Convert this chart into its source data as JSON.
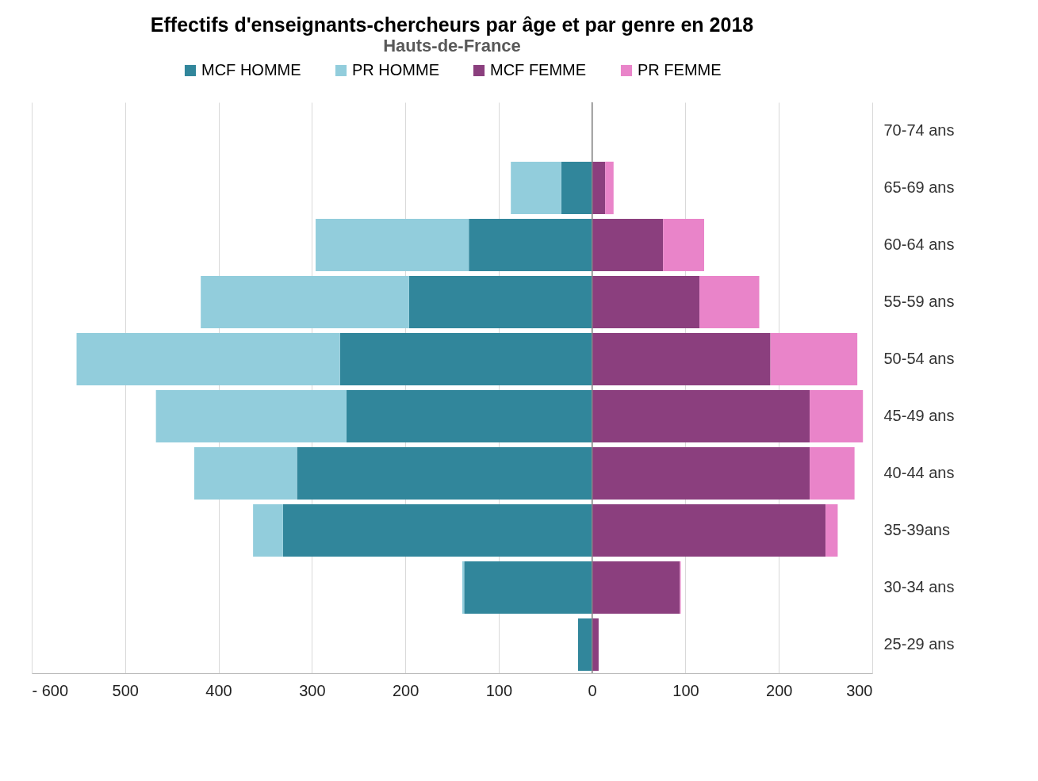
{
  "chart_data": {
    "type": "bar",
    "orientation": "horizontal",
    "stacked": true,
    "title": "Effectifs d'enseignants-chercheurs par âge et par genre en 2018",
    "subtitle": "Hauts-de-France",
    "categories": [
      "70-74 ans",
      "65-69 ans",
      "60-64 ans",
      "55-59 ans",
      "50-54 ans",
      "45-49 ans",
      "40-44 ans",
      "35-39ans",
      "30-34 ans",
      "25-29 ans"
    ],
    "series": [
      {
        "name": "MCF HOMME",
        "color": "#31869b",
        "values": [
          null,
          -33,
          -132,
          -196,
          -270,
          -263,
          -316,
          -331,
          -137,
          -15
        ]
      },
      {
        "name": "PR HOMME",
        "color": "#92cddc",
        "values": [
          null,
          -54,
          -164,
          -223,
          -282,
          -204,
          -110,
          -32,
          -2,
          null
        ]
      },
      {
        "name": "MCF FEMME",
        "color": "#8b3f7e",
        "values": [
          null,
          14,
          76,
          115,
          191,
          233,
          233,
          250,
          94,
          7
        ]
      },
      {
        "name": "PR FEMME",
        "color": "#e984c9",
        "values": [
          null,
          9,
          44,
          64,
          93,
          57,
          48,
          13,
          1,
          null
        ]
      }
    ],
    "xlim": [
      -600,
      300
    ],
    "xticks": [
      {
        "value": -600,
        "label": "- 600"
      },
      {
        "value": -500,
        "label": "500"
      },
      {
        "value": -400,
        "label": "400"
      },
      {
        "value": -300,
        "label": "300"
      },
      {
        "value": -200,
        "label": "200"
      },
      {
        "value": -100,
        "label": "100"
      },
      0,
      100,
      200,
      300
    ],
    "ref_lines": [
      {
        "axis": "x",
        "value": 0,
        "color": "#888888"
      }
    ],
    "grid": "x",
    "legend": "top"
  }
}
